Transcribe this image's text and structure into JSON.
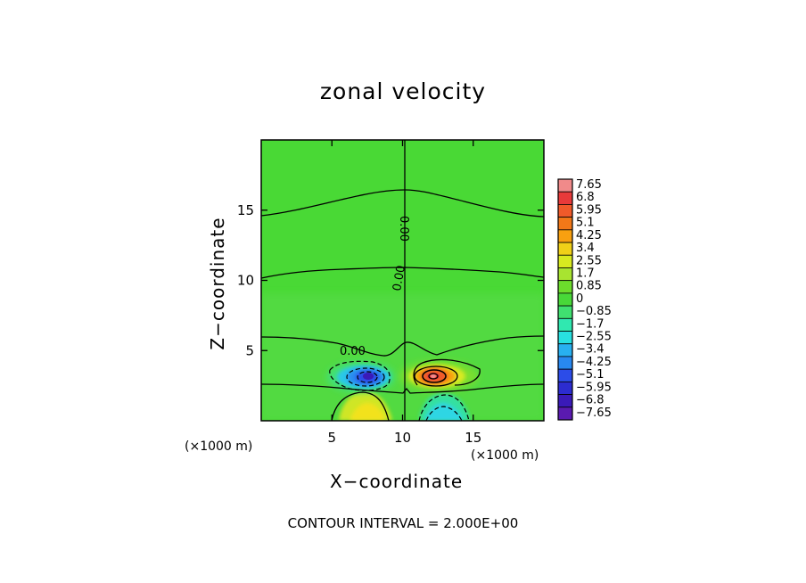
{
  "chart_data": {
    "type": "heatmap",
    "title": "zonal velocity",
    "xlabel": "X−coordinate",
    "ylabel": "Z−coordinate",
    "x_unit": "(×1000 m)",
    "xlim": [
      0,
      20
    ],
    "ylim": [
      0,
      20
    ],
    "x_ticks": [
      5,
      10,
      15
    ],
    "y_ticks": [
      5,
      10,
      15
    ],
    "x_tick_labels": [
      "5",
      "10",
      "15"
    ],
    "y_tick_labels": [
      "5",
      "10",
      "15"
    ],
    "colorbar_levels": [
      "7.65",
      "6.8",
      "5.95",
      "5.1",
      "4.25",
      "3.4",
      "2.55",
      "1.7",
      "0.85",
      "0",
      "−0.85",
      "−1.7",
      "−2.55",
      "−3.4",
      "−4.25",
      "−5.1",
      "−5.95",
      "−6.8",
      "−7.65"
    ],
    "colorbar_colors": [
      "#f08a8a",
      "#e83a3a",
      "#f05a2a",
      "#f27818",
      "#f8a010",
      "#f0d018",
      "#d8ea20",
      "#a8e430",
      "#6cdc2c",
      "#48d838",
      "#40e070",
      "#30e8b0",
      "#28e0e0",
      "#28b0f0",
      "#2888f0",
      "#2c4ce8",
      "#2c2cd0",
      "#3a1ab8",
      "#5a1ab0"
    ],
    "contour_labels": [
      "0.00",
      "0.00",
      "0.00",
      "0.00"
    ],
    "contour_interval_text": "CONTOUR INTERVAL = 2.000E+00",
    "features": [
      {
        "kind": "max",
        "x": 12.0,
        "z": 3.0,
        "value": 7.65
      },
      {
        "kind": "min",
        "x": 8.0,
        "z": 3.0,
        "value": -7.65
      },
      {
        "kind": "positive-lobe",
        "x": 7.5,
        "z": 0.8
      },
      {
        "kind": "negative-lobe",
        "x": 12.5,
        "z": 0.8
      }
    ]
  }
}
